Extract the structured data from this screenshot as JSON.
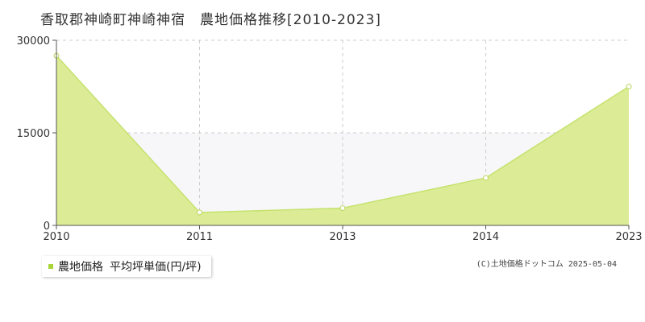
{
  "title": "香取郡神崎町神崎神宿　農地価格推移[2010-2023]",
  "legend": {
    "series_label": "農地価格",
    "unit_label": "平均坪単価(円/坪)"
  },
  "copyright": "(C)土地価格ドットコム 2025-05-04",
  "colors": {
    "area_fill": "#dcec96",
    "line": "#c5e26e",
    "marker_stroke": "#b9d75c",
    "band": "#f7f7f9",
    "grid": "#cccccc",
    "legend_swatch": "#a9d43a"
  },
  "chart_data": {
    "type": "area",
    "title": "香取郡神崎町神崎神宿　農地価格推移[2010-2023]",
    "categories": [
      "2010",
      "2011",
      "2013",
      "2014",
      "2023"
    ],
    "series": [
      {
        "name": "農地価格",
        "values": [
          27500,
          2100,
          2800,
          7700,
          22500
        ]
      }
    ],
    "y_ticks": [
      "0",
      "15000",
      "30000"
    ],
    "ylim": [
      0,
      30000
    ],
    "grid": true,
    "legend_position": "bottom-left"
  }
}
